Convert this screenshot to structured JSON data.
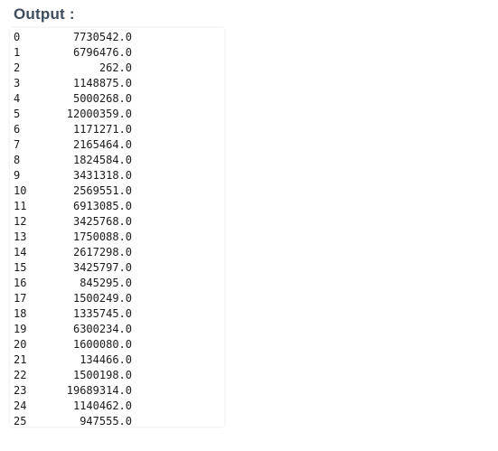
{
  "heading": "Output :",
  "output": {
    "rows": [
      {
        "index": "0",
        "value": "7730542.0"
      },
      {
        "index": "1",
        "value": "6796476.0"
      },
      {
        "index": "2",
        "value": "262.0"
      },
      {
        "index": "3",
        "value": "1148875.0"
      },
      {
        "index": "4",
        "value": "5000268.0"
      },
      {
        "index": "5",
        "value": "12000359.0"
      },
      {
        "index": "6",
        "value": "1171271.0"
      },
      {
        "index": "7",
        "value": "2165464.0"
      },
      {
        "index": "8",
        "value": "1824584.0"
      },
      {
        "index": "9",
        "value": "3431318.0"
      },
      {
        "index": "10",
        "value": "2569551.0"
      },
      {
        "index": "11",
        "value": "6913085.0"
      },
      {
        "index": "12",
        "value": "3425768.0"
      },
      {
        "index": "13",
        "value": "1750088.0"
      },
      {
        "index": "14",
        "value": "2617298.0"
      },
      {
        "index": "15",
        "value": "3425797.0"
      },
      {
        "index": "16",
        "value": "845295.0"
      },
      {
        "index": "17",
        "value": "1500249.0"
      },
      {
        "index": "18",
        "value": "1335745.0"
      },
      {
        "index": "19",
        "value": "6300234.0"
      },
      {
        "index": "20",
        "value": "1600080.0"
      },
      {
        "index": "21",
        "value": "134466.0"
      },
      {
        "index": "22",
        "value": "1500198.0"
      },
      {
        "index": "23",
        "value": "19689314.0"
      },
      {
        "index": "24",
        "value": "1140462.0"
      },
      {
        "index": "25",
        "value": "947555.0"
      }
    ]
  }
}
